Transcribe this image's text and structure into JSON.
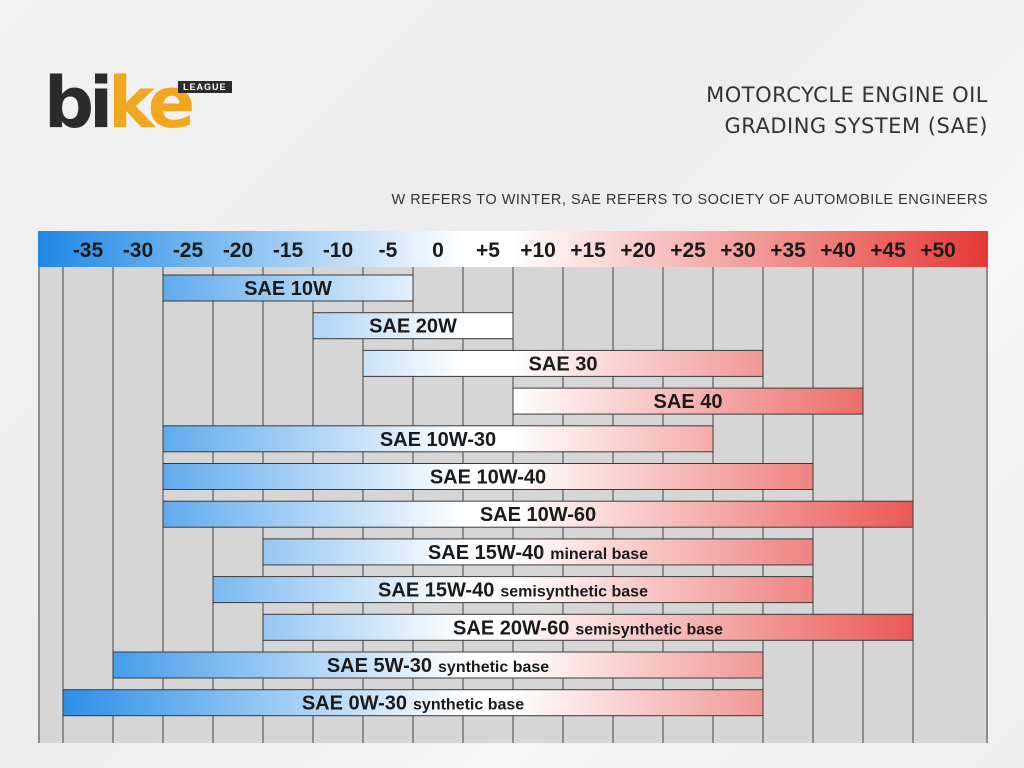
{
  "brand": {
    "logo_text_dark": "bi",
    "logo_text_accent": "ke",
    "logo_tag": "LEAGUE",
    "accent_color": "#f2a81d"
  },
  "header": {
    "title_line1": "MOTORCYCLE ENGINE OIL",
    "title_line2": "GRADING SYSTEM (SAE)",
    "subtitle": "W REFERS TO WINTER, SAE REFERS TO SOCIETY OF AUTOMOBILE ENGINEERS"
  },
  "chart_data": {
    "type": "bar",
    "orientation": "horizontal-range",
    "x_ticks": [
      "-35",
      "-30",
      "-25",
      "-20",
      "-15",
      "-10",
      "-5",
      "0",
      "+5",
      "+10",
      "+15",
      "+20",
      "+25",
      "+30",
      "+35",
      "+40",
      "+45",
      "+50"
    ],
    "x_range": [
      -35,
      50
    ],
    "grid": true,
    "scale_colors": {
      "cold": "#1e88e5",
      "neutral": "#ffffff",
      "hot": "#e53935"
    },
    "bars": [
      {
        "label": "SAE 10W",
        "suffix": "",
        "min": -25,
        "max": 0
      },
      {
        "label": "SAE 20W",
        "suffix": "",
        "min": -10,
        "max": 10
      },
      {
        "label": "SAE 30",
        "suffix": "",
        "min": -5,
        "max": 35
      },
      {
        "label": "SAE 40",
        "suffix": "",
        "min": 10,
        "max": 45
      },
      {
        "label": "SAE 10W-30",
        "suffix": "",
        "min": -25,
        "max": 30
      },
      {
        "label": "SAE 10W-40",
        "suffix": "",
        "min": -25,
        "max": 40
      },
      {
        "label": "SAE 10W-60",
        "suffix": "",
        "min": -25,
        "max": 50
      },
      {
        "label": "SAE 15W-40",
        "suffix": "mineral base",
        "min": -15,
        "max": 40
      },
      {
        "label": "SAE 15W-40",
        "suffix": "semisynthetic base",
        "min": -20,
        "max": 40
      },
      {
        "label": "SAE 20W-60",
        "suffix": "semisynthetic base",
        "min": -15,
        "max": 50
      },
      {
        "label": "SAE 5W-30",
        "suffix": "synthetic base",
        "min": -30,
        "max": 35
      },
      {
        "label": "SAE 0W-30",
        "suffix": "synthetic base",
        "min": -35,
        "max": 35
      }
    ]
  }
}
